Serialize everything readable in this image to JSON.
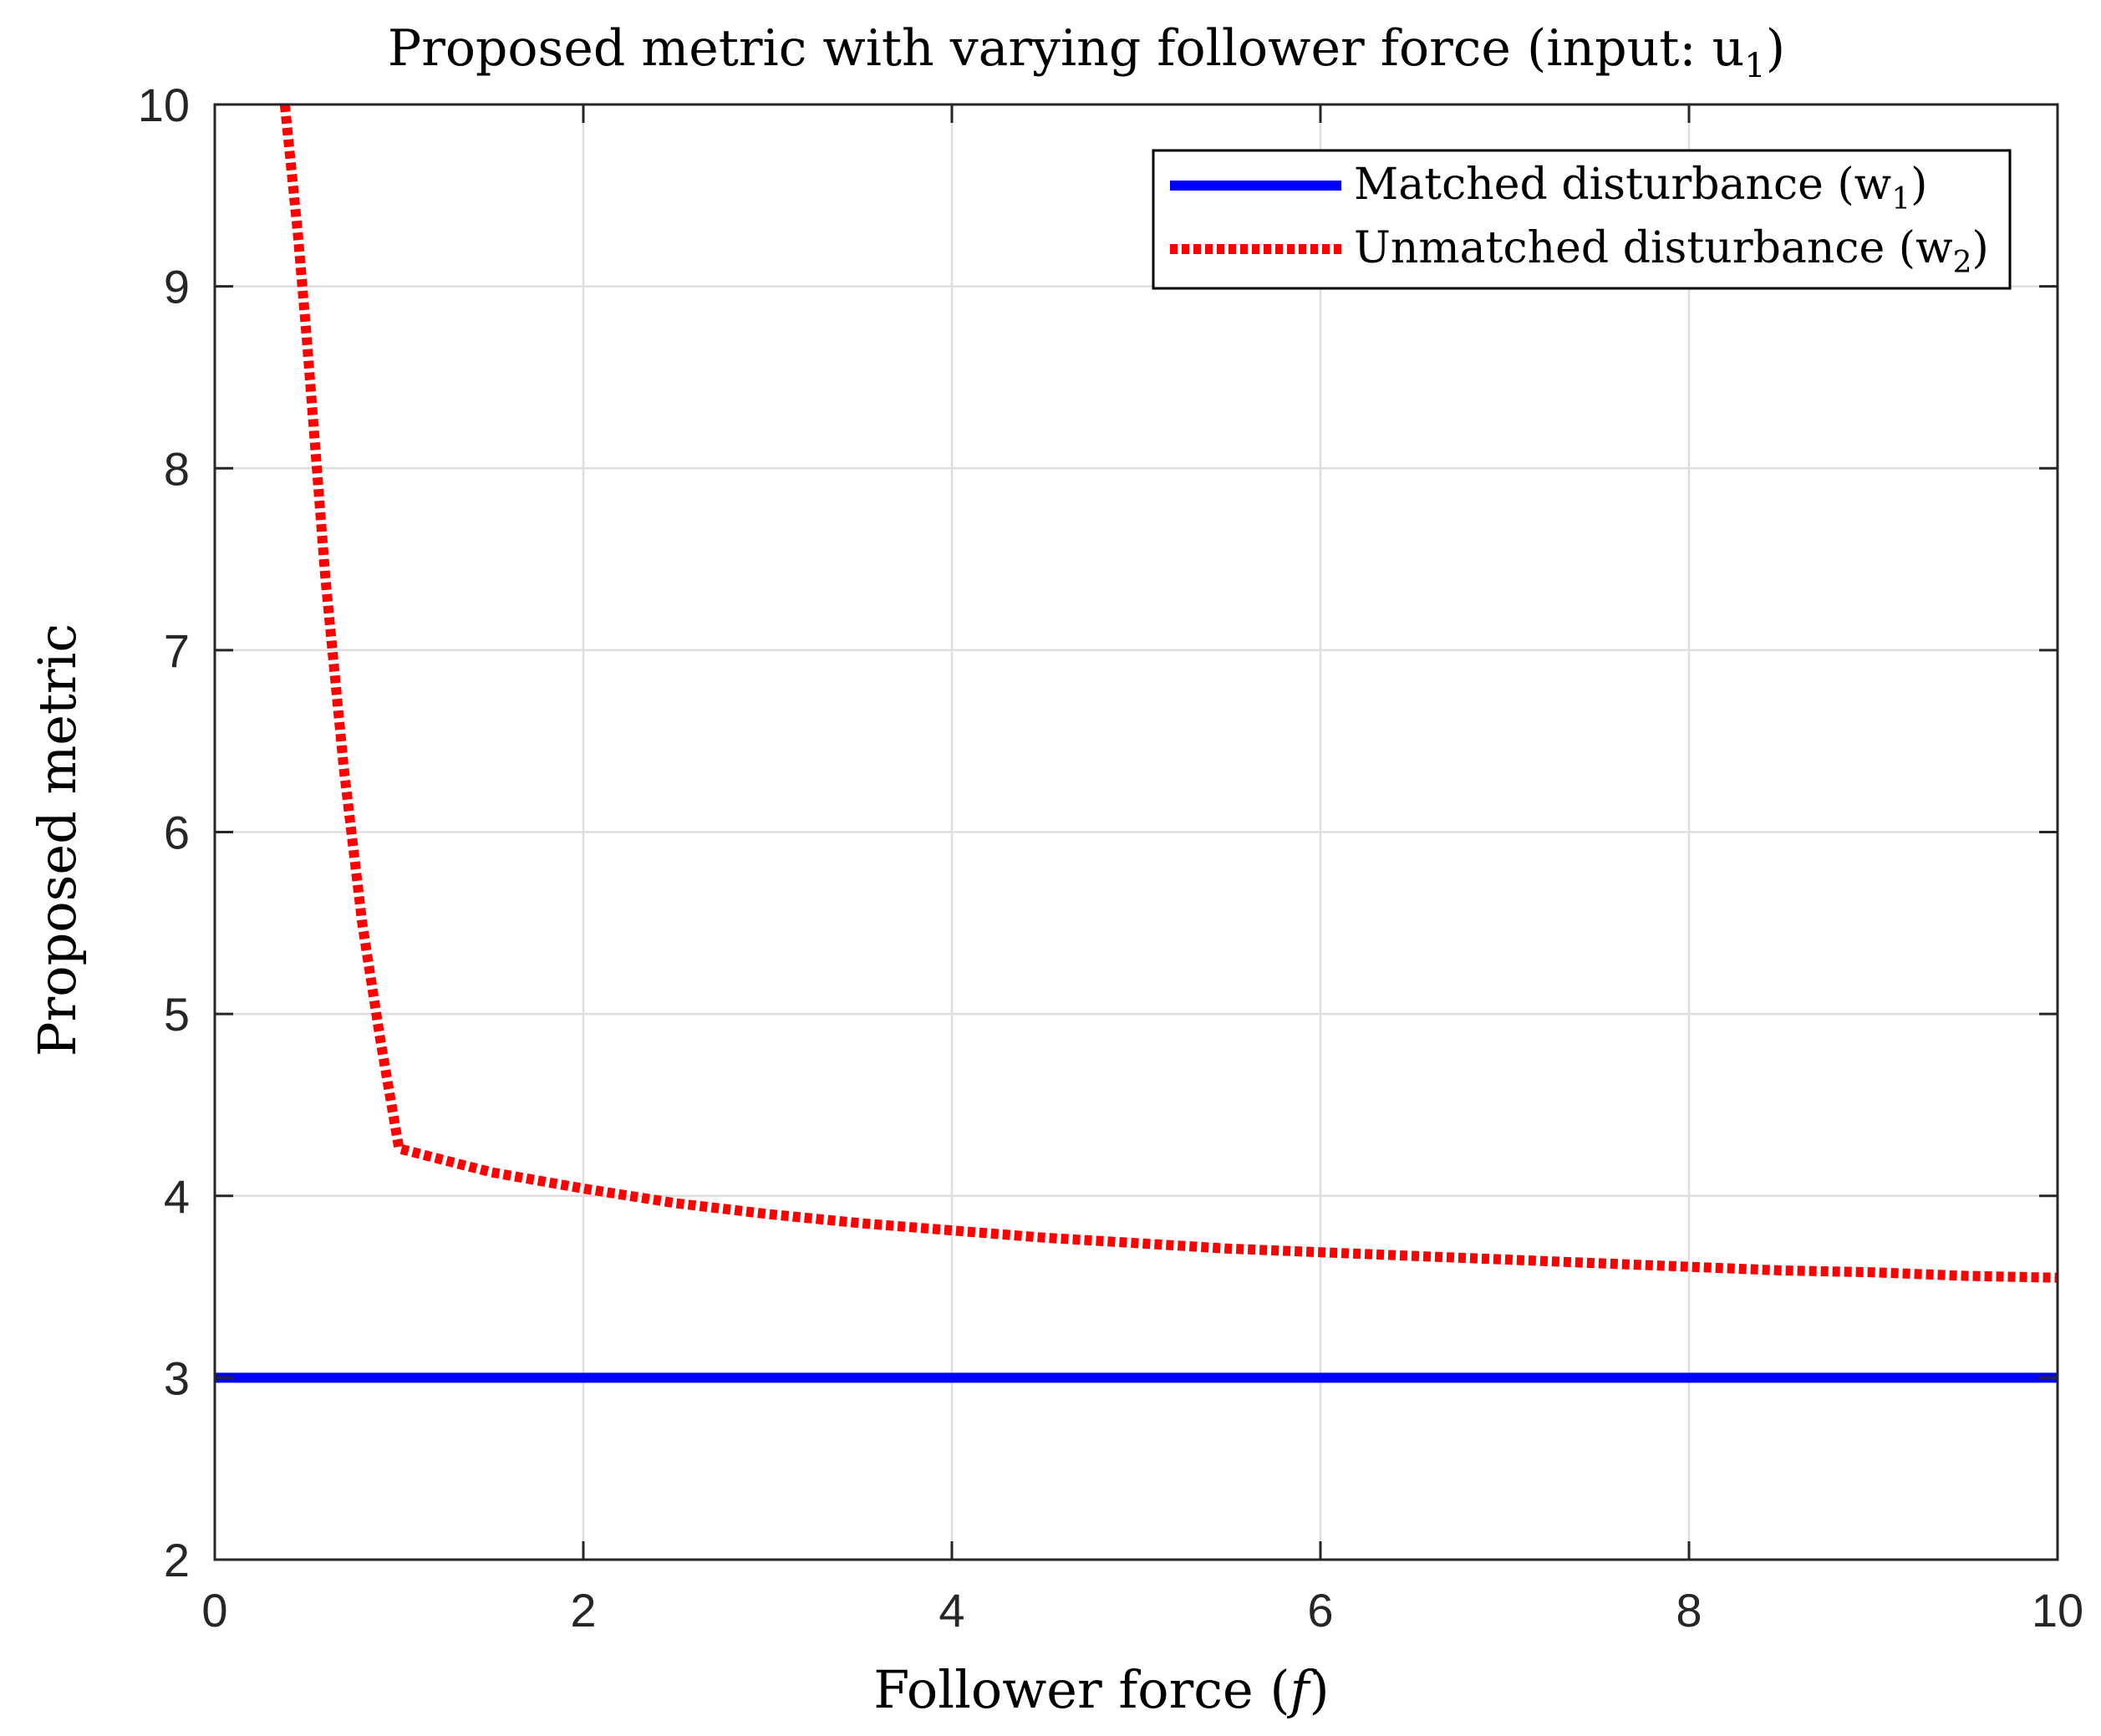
{
  "chart_data": {
    "type": "line",
    "title": "Proposed metric with varying follower force (input: u",
    "title_sub": "1",
    "title_close": ")",
    "xlabel": "Follower force (",
    "xlabel_var": "f",
    "xlabel_close": ")",
    "ylabel": "Proposed metric",
    "xlim": [
      0,
      10
    ],
    "ylim": [
      2,
      10
    ],
    "xticks": [
      0,
      2,
      4,
      6,
      8,
      10
    ],
    "yticks": [
      2,
      3,
      4,
      5,
      6,
      7,
      8,
      9,
      10
    ],
    "xtick_labels": [
      "0",
      "2",
      "4",
      "6",
      "8",
      "10"
    ],
    "ytick_labels": [
      "2",
      "3",
      "4",
      "5",
      "6",
      "7",
      "8",
      "9",
      "10"
    ],
    "grid": true,
    "legend_position": "top-right",
    "series": [
      {
        "name": "Matched disturbance (w",
        "sub": "1",
        "close": ")",
        "color": "#0000ff",
        "style": "solid",
        "x": [
          0,
          10
        ],
        "y": [
          3.0,
          3.0
        ]
      },
      {
        "name": "Unmatched disturbance (w",
        "sub": "2",
        "close": ")",
        "color": "#ff0000",
        "style": "dotted",
        "x": [
          0.38,
          0.45,
          0.5,
          0.55,
          0.6,
          0.7,
          0.8,
          0.9,
          1.0,
          1.5,
          2,
          2.5,
          3,
          3.5,
          4,
          4.5,
          5,
          5.5,
          6,
          6.5,
          7,
          7.5,
          8,
          8.5,
          9,
          9.5,
          10
        ],
        "y": [
          10.0,
          9.3,
          8.7,
          8.05,
          7.4,
          6.35,
          5.5,
          4.85,
          4.26,
          4.13,
          4.04,
          3.96,
          3.9,
          3.85,
          3.81,
          3.77,
          3.74,
          3.71,
          3.69,
          3.67,
          3.65,
          3.63,
          3.61,
          3.59,
          3.58,
          3.56,
          3.55
        ]
      }
    ]
  }
}
